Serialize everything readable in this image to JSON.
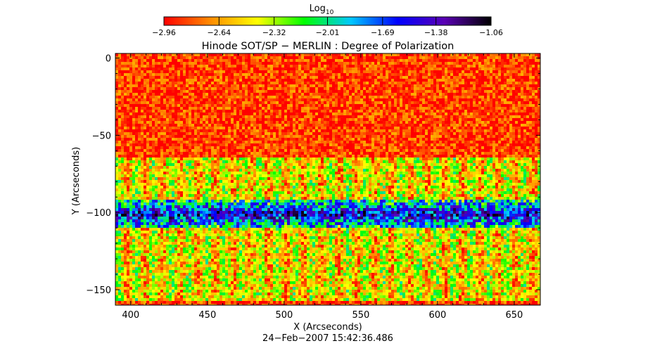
{
  "chart_data": {
    "type": "heatmap",
    "title": "Hinode SOT/SP − MERLIN : Degree of Polarization",
    "xlabel": "X (Arcseconds)",
    "ylabel": "Y (Arcseconds)",
    "timestamp": "24−Feb−2007  15:42:36.486",
    "xlim": [
      390,
      667
    ],
    "ylim": [
      -160,
      3
    ],
    "x_ticks": [
      {
        "value": 400,
        "label": "400"
      },
      {
        "value": 450,
        "label": "450"
      },
      {
        "value": 500,
        "label": "500"
      },
      {
        "value": 550,
        "label": "550"
      },
      {
        "value": 600,
        "label": "600"
      },
      {
        "value": 650,
        "label": "650"
      }
    ],
    "y_ticks": [
      {
        "value": 0,
        "label": "0"
      },
      {
        "value": -50,
        "label": "−50"
      },
      {
        "value": -100,
        "label": "−100"
      },
      {
        "value": -150,
        "label": "−150"
      }
    ],
    "colorbar": {
      "title": "Log",
      "title_sub": "10",
      "range": [
        -2.96,
        -1.06
      ],
      "ticks": [
        {
          "value": -2.96,
          "label": "−2.96"
        },
        {
          "value": -2.64,
          "label": "−2.64"
        },
        {
          "value": -2.32,
          "label": "−2.32"
        },
        {
          "value": -2.01,
          "label": "−2.01"
        },
        {
          "value": -1.69,
          "label": "−1.69"
        },
        {
          "value": -1.38,
          "label": "−1.38"
        },
        {
          "value": -1.06,
          "label": "−1.06"
        }
      ],
      "colormap": [
        "#ff0000",
        "#ff8c00",
        "#ffff00",
        "#00ff00",
        "#00c8ff",
        "#0000ff",
        "#5a00b4",
        "#000000"
      ]
    },
    "background_level": -2.85,
    "high_polarization_band": {
      "y_range": [
        -110,
        -92
      ],
      "level": -1.45
    },
    "moderate_polarization_zone": {
      "y_range": [
        -158,
        -65
      ],
      "level": -2.3
    }
  }
}
